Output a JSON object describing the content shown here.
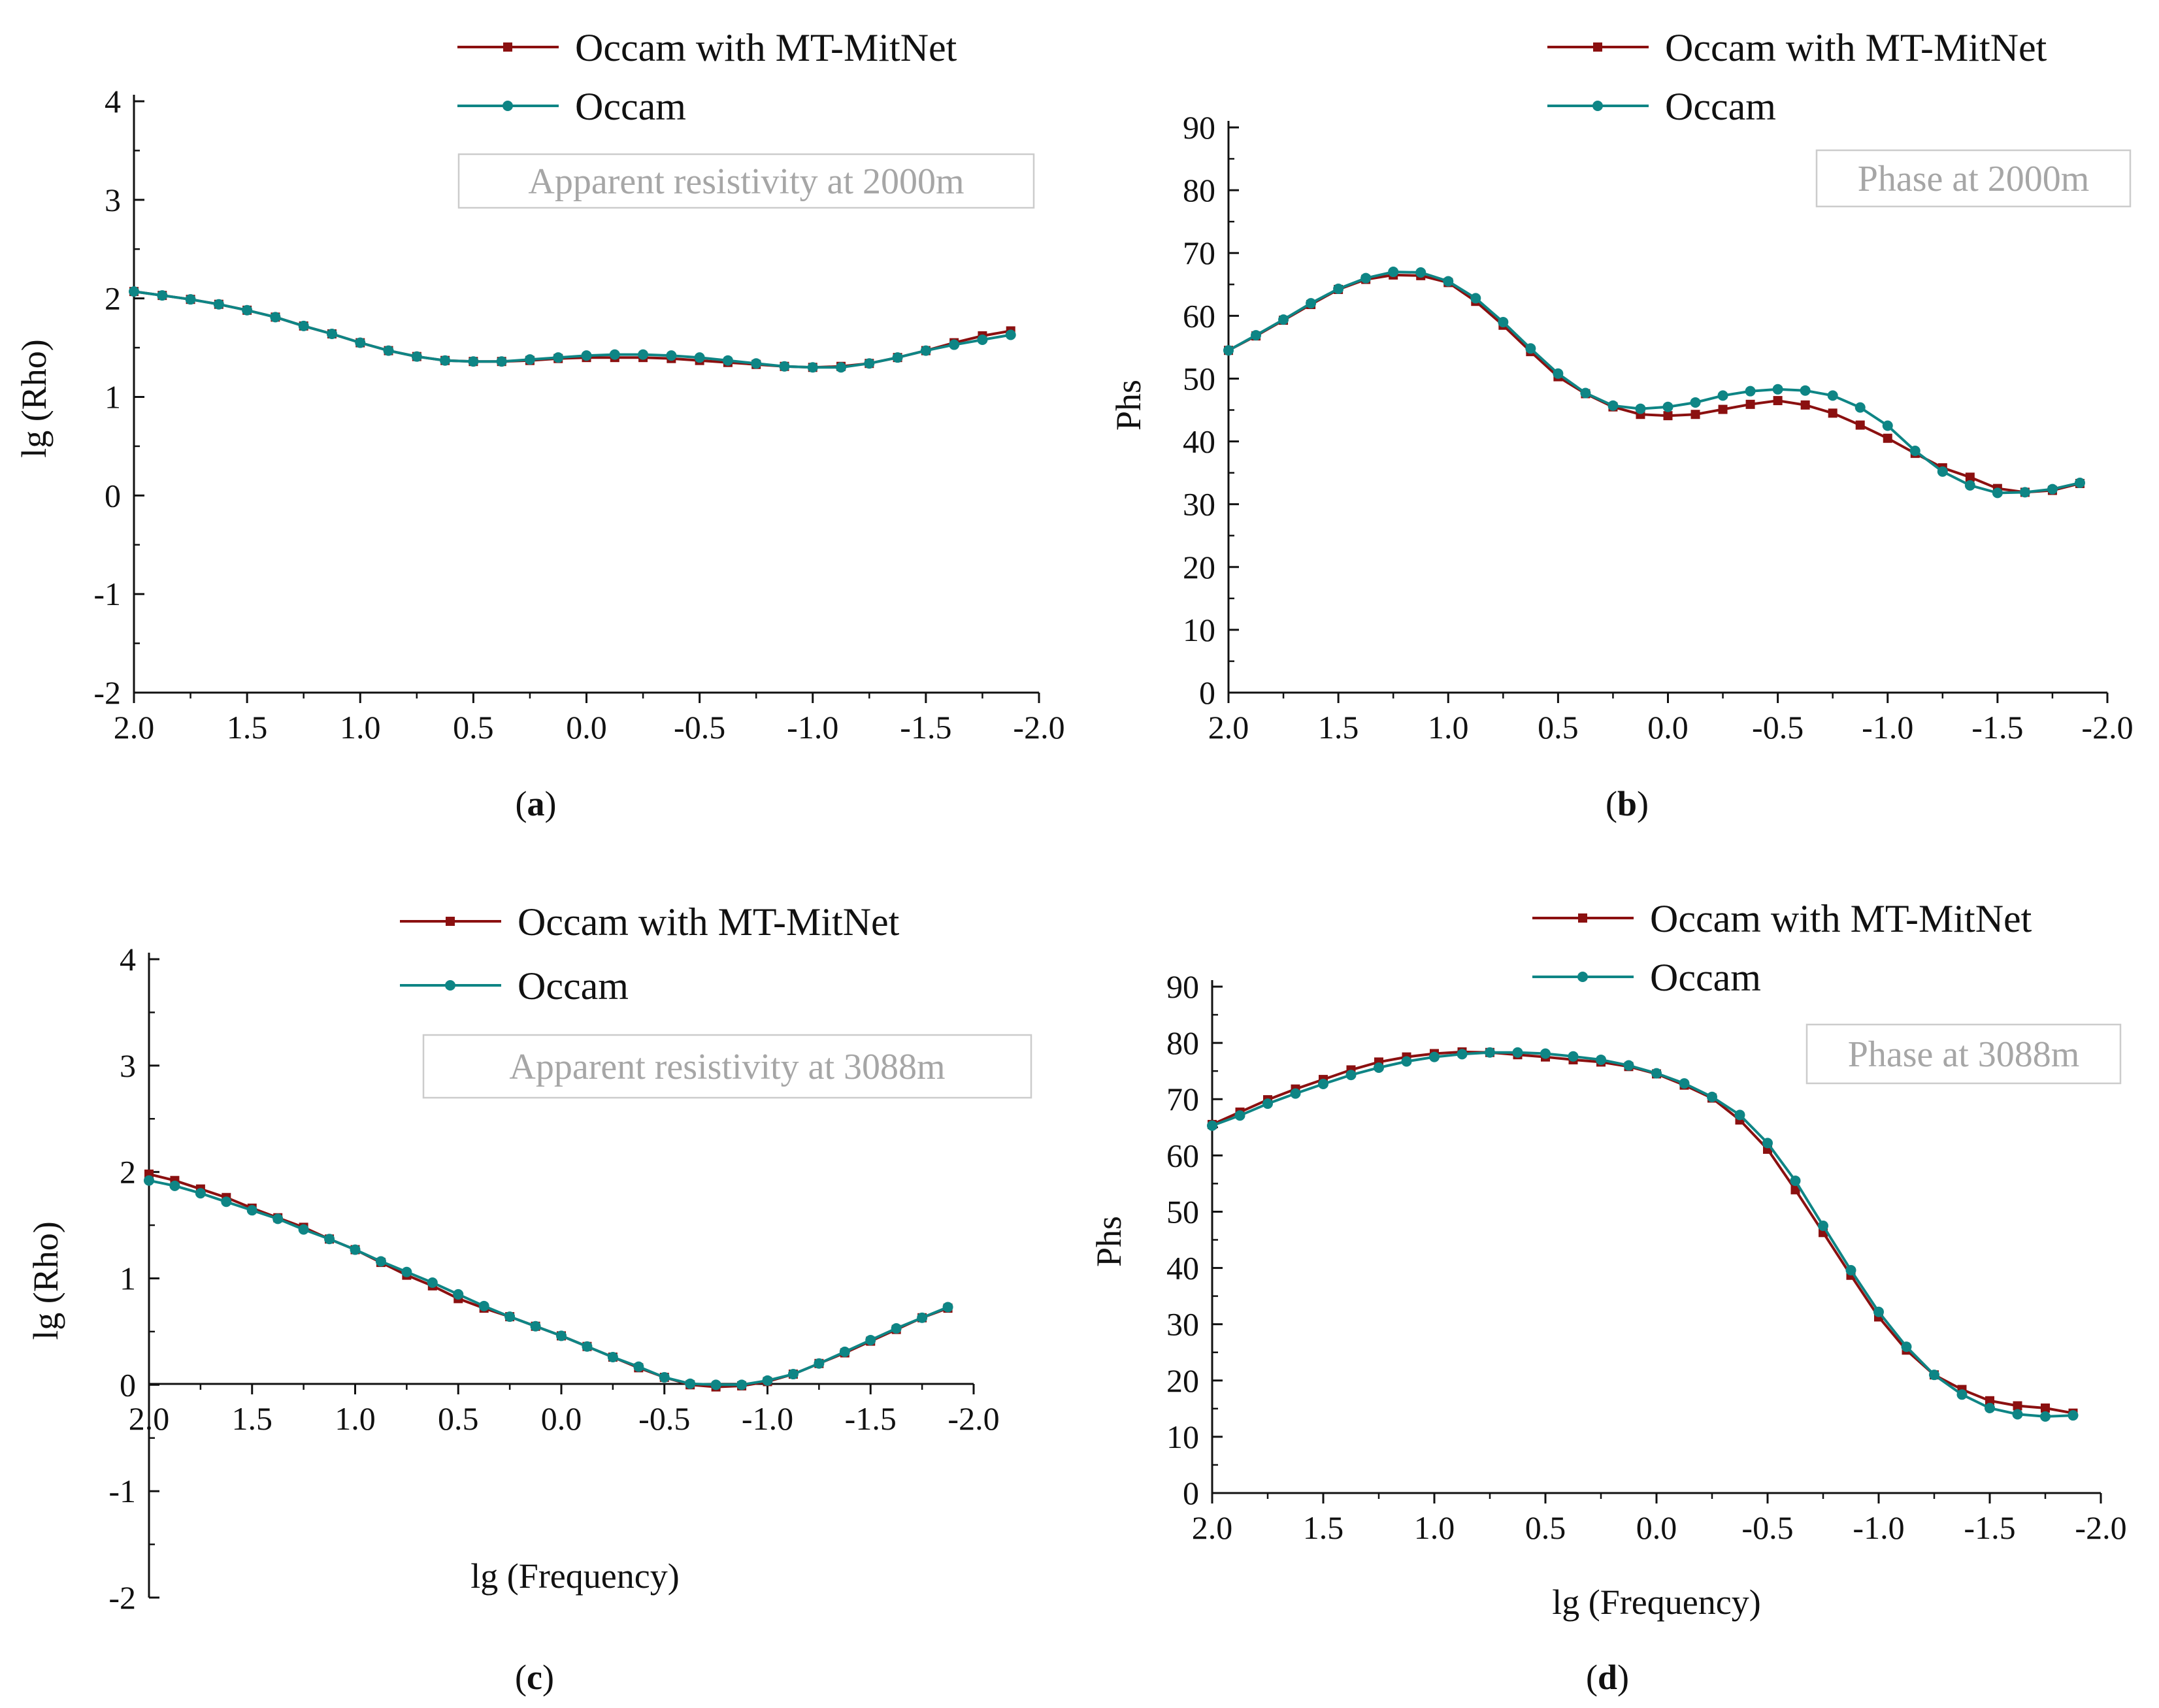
{
  "colors": {
    "mitnet": "#8b1010",
    "occam": "#0e8585",
    "axis": "#111111",
    "annotation": "#a6a6a6",
    "annotation_border": "#cccccc"
  },
  "chart_data": [
    {
      "id": "a",
      "type": "line",
      "panel_label": "a",
      "annotation": "Apparent resistivity at 2000m",
      "xlabel": "",
      "ylabel": "lg (Rho)",
      "xlim": [
        2.0,
        -2.0
      ],
      "ylim": [
        -2,
        4
      ],
      "xticks": [
        2.0,
        1.5,
        1.0,
        0.5,
        0.0,
        -0.5,
        -1.0,
        -1.5,
        -2.0
      ],
      "xtick_labels": [
        "2.0",
        "1.5",
        "1.0",
        "0.5",
        "0.0",
        "-0.5",
        "-1.0",
        "-1.5",
        "-2.0"
      ],
      "yticks": [
        -2,
        -1,
        0,
        1,
        2,
        3,
        4
      ],
      "ytick_labels": [
        "-2",
        "-1",
        "0",
        "1",
        "2",
        "3",
        "4"
      ],
      "legend": [
        "Occam with MT-MitNet",
        "Occam"
      ],
      "legend_position": "top-right",
      "series": [
        {
          "name": "Occam with MT-MitNet",
          "marker": "square",
          "x": [
            2.0,
            1.875,
            1.75,
            1.625,
            1.5,
            1.375,
            1.25,
            1.125,
            1.0,
            0.875,
            0.75,
            0.625,
            0.5,
            0.375,
            0.25,
            0.125,
            0.0,
            -0.125,
            -0.25,
            -0.375,
            -0.5,
            -0.625,
            -0.75,
            -0.875,
            -1.0,
            -1.125,
            -1.25,
            -1.375,
            -1.5,
            -1.625,
            -1.75,
            -1.875
          ],
          "values": [
            2.07,
            2.03,
            1.99,
            1.94,
            1.88,
            1.81,
            1.72,
            1.64,
            1.55,
            1.47,
            1.41,
            1.37,
            1.36,
            1.36,
            1.37,
            1.39,
            1.4,
            1.4,
            1.4,
            1.39,
            1.37,
            1.35,
            1.33,
            1.31,
            1.3,
            1.31,
            1.34,
            1.4,
            1.47,
            1.55,
            1.62,
            1.67
          ]
        },
        {
          "name": "Occam",
          "marker": "circle",
          "x": [
            2.0,
            1.875,
            1.75,
            1.625,
            1.5,
            1.375,
            1.25,
            1.125,
            1.0,
            0.875,
            0.75,
            0.625,
            0.5,
            0.375,
            0.25,
            0.125,
            0.0,
            -0.125,
            -0.25,
            -0.375,
            -0.5,
            -0.625,
            -0.75,
            -0.875,
            -1.0,
            -1.125,
            -1.25,
            -1.375,
            -1.5,
            -1.625,
            -1.75,
            -1.875
          ],
          "values": [
            2.07,
            2.03,
            1.99,
            1.94,
            1.88,
            1.81,
            1.72,
            1.64,
            1.55,
            1.47,
            1.41,
            1.37,
            1.36,
            1.36,
            1.38,
            1.4,
            1.42,
            1.43,
            1.43,
            1.42,
            1.4,
            1.37,
            1.34,
            1.31,
            1.3,
            1.3,
            1.34,
            1.4,
            1.47,
            1.53,
            1.58,
            1.63
          ]
        }
      ]
    },
    {
      "id": "b",
      "type": "line",
      "panel_label": "b",
      "annotation": "Phase at 2000m",
      "xlabel": "",
      "ylabel": "Phs",
      "xlim": [
        2.0,
        -2.0
      ],
      "ylim": [
        0,
        90
      ],
      "xticks": [
        2.0,
        1.5,
        1.0,
        0.5,
        0.0,
        -0.5,
        -1.0,
        -1.5,
        -2.0
      ],
      "xtick_labels": [
        "2.0",
        "1.5",
        "1.0",
        "0.5",
        "0.0",
        "-0.5",
        "-1.0",
        "-1.5",
        "-2.0"
      ],
      "yticks": [
        0,
        10,
        20,
        30,
        40,
        50,
        60,
        70,
        80,
        90
      ],
      "ytick_labels": [
        "0",
        "10",
        "20",
        "30",
        "40",
        "50",
        "60",
        "70",
        "80",
        "90"
      ],
      "legend": [
        "Occam with MT-MitNet",
        "Occam"
      ],
      "legend_position": "top-right",
      "series": [
        {
          "name": "Occam with MT-MitNet",
          "marker": "square",
          "x": [
            2.0,
            1.875,
            1.75,
            1.625,
            1.5,
            1.375,
            1.25,
            1.125,
            1.0,
            0.875,
            0.75,
            0.625,
            0.5,
            0.375,
            0.25,
            0.125,
            0.0,
            -0.125,
            -0.25,
            -0.375,
            -0.5,
            -0.625,
            -0.75,
            -0.875,
            -1.0,
            -1.125,
            -1.25,
            -1.375,
            -1.5,
            -1.625,
            -1.75,
            -1.875
          ],
          "values": [
            54.5,
            56.8,
            59.3,
            61.8,
            64.2,
            65.8,
            66.5,
            66.4,
            65.3,
            62.3,
            58.5,
            54.3,
            50.3,
            47.6,
            45.5,
            44.3,
            44.1,
            44.3,
            45.1,
            45.9,
            46.5,
            45.8,
            44.5,
            42.6,
            40.5,
            38.1,
            35.8,
            34.3,
            32.5,
            31.9,
            32.2,
            33.3
          ]
        },
        {
          "name": "Occam",
          "marker": "circle",
          "x": [
            2.0,
            1.875,
            1.75,
            1.625,
            1.5,
            1.375,
            1.25,
            1.125,
            1.0,
            0.875,
            0.75,
            0.625,
            0.5,
            0.375,
            0.25,
            0.125,
            0.0,
            -0.125,
            -0.25,
            -0.375,
            -0.5,
            -0.625,
            -0.75,
            -0.875,
            -1.0,
            -1.125,
            -1.25,
            -1.375,
            -1.5,
            -1.625,
            -1.75,
            -1.875
          ],
          "values": [
            54.5,
            56.9,
            59.4,
            62.0,
            64.3,
            66.0,
            67.0,
            66.9,
            65.5,
            62.8,
            59.0,
            54.8,
            50.8,
            47.7,
            45.7,
            45.2,
            45.5,
            46.2,
            47.3,
            48.0,
            48.3,
            48.1,
            47.3,
            45.4,
            42.5,
            38.5,
            35.2,
            33.0,
            31.8,
            31.9,
            32.4,
            33.4
          ]
        }
      ]
    },
    {
      "id": "c",
      "type": "line",
      "panel_label": "c",
      "annotation": "Apparent resistivity at 3088m",
      "xlabel": "lg (Frequency)",
      "ylabel": "lg (Rho)",
      "xlim": [
        2.0,
        -2.0
      ],
      "ylim": [
        -2,
        4
      ],
      "xticks": [
        2.0,
        1.5,
        1.0,
        0.5,
        0.0,
        -0.5,
        -1.0,
        -1.5,
        -2.0
      ],
      "xtick_labels": [
        "2.0",
        "1.5",
        "1.0",
        "0.5",
        "0.0",
        "-0.5",
        "-1.0",
        "-1.5",
        "-2.0"
      ],
      "yticks": [
        -2,
        -1,
        0,
        1,
        2,
        3,
        4
      ],
      "ytick_labels": [
        "-2",
        "-1",
        "0",
        "1",
        "2",
        "3",
        "4"
      ],
      "legend": [
        "Occam with MT-MitNet",
        "Occam"
      ],
      "legend_position": "top-right",
      "series": [
        {
          "name": "Occam with MT-MitNet",
          "marker": "square",
          "x": [
            2.0,
            1.875,
            1.75,
            1.625,
            1.5,
            1.375,
            1.25,
            1.125,
            1.0,
            0.875,
            0.75,
            0.625,
            0.5,
            0.375,
            0.25,
            0.125,
            0.0,
            -0.125,
            -0.25,
            -0.375,
            -0.5,
            -0.625,
            -0.75,
            -0.875,
            -1.0,
            -1.125,
            -1.25,
            -1.375,
            -1.5,
            -1.625,
            -1.75,
            -1.875
          ],
          "values": [
            1.98,
            1.92,
            1.84,
            1.76,
            1.66,
            1.57,
            1.48,
            1.37,
            1.27,
            1.15,
            1.03,
            0.93,
            0.81,
            0.72,
            0.64,
            0.55,
            0.46,
            0.36,
            0.26,
            0.16,
            0.07,
            0.0,
            -0.02,
            -0.01,
            0.03,
            0.1,
            0.2,
            0.3,
            0.41,
            0.52,
            0.63,
            0.72
          ]
        },
        {
          "name": "Occam",
          "marker": "circle",
          "x": [
            2.0,
            1.875,
            1.75,
            1.625,
            1.5,
            1.375,
            1.25,
            1.125,
            1.0,
            0.875,
            0.75,
            0.625,
            0.5,
            0.375,
            0.25,
            0.125,
            0.0,
            -0.125,
            -0.25,
            -0.375,
            -0.5,
            -0.625,
            -0.75,
            -0.875,
            -1.0,
            -1.125,
            -1.25,
            -1.375,
            -1.5,
            -1.625,
            -1.75,
            -1.875
          ],
          "values": [
            1.92,
            1.87,
            1.8,
            1.72,
            1.64,
            1.56,
            1.46,
            1.37,
            1.27,
            1.16,
            1.06,
            0.96,
            0.85,
            0.74,
            0.64,
            0.55,
            0.46,
            0.36,
            0.26,
            0.17,
            0.07,
            0.01,
            0.0,
            0.0,
            0.04,
            0.1,
            0.2,
            0.31,
            0.42,
            0.53,
            0.63,
            0.73
          ]
        }
      ]
    },
    {
      "id": "d",
      "type": "line",
      "panel_label": "d",
      "annotation": "Phase at 3088m",
      "xlabel": "lg (Frequency)",
      "ylabel": "Phs",
      "xlim": [
        2.0,
        -2.0
      ],
      "ylim": [
        0,
        90
      ],
      "xticks": [
        2.0,
        1.5,
        1.0,
        0.5,
        0.0,
        -0.5,
        -1.0,
        -1.5,
        -2.0
      ],
      "xtick_labels": [
        "2.0",
        "1.5",
        "1.0",
        "0.5",
        "0.0",
        "-0.5",
        "-1.0",
        "-1.5",
        "-2.0"
      ],
      "yticks": [
        0,
        10,
        20,
        30,
        40,
        50,
        60,
        70,
        80,
        90
      ],
      "ytick_labels": [
        "0",
        "10",
        "20",
        "30",
        "40",
        "50",
        "60",
        "70",
        "80",
        "90"
      ],
      "legend": [
        "Occam with MT-MitNet",
        "Occam"
      ],
      "legend_position": "top-right",
      "series": [
        {
          "name": "Occam with MT-MitNet",
          "marker": "square",
          "x": [
            2.0,
            1.875,
            1.75,
            1.625,
            1.5,
            1.375,
            1.25,
            1.125,
            1.0,
            0.875,
            0.75,
            0.625,
            0.5,
            0.375,
            0.25,
            0.125,
            0.0,
            -0.125,
            -0.25,
            -0.375,
            -0.5,
            -0.625,
            -0.75,
            -0.875,
            -1.0,
            -1.125,
            -1.25,
            -1.375,
            -1.5,
            -1.625,
            -1.75,
            -1.875
          ],
          "values": [
            65.5,
            67.7,
            69.9,
            71.8,
            73.5,
            75.2,
            76.6,
            77.5,
            78.1,
            78.4,
            78.3,
            77.9,
            77.5,
            77.0,
            76.6,
            75.8,
            74.5,
            72.5,
            70.2,
            66.3,
            61.1,
            53.9,
            46.3,
            38.7,
            31.3,
            25.4,
            21.0,
            18.4,
            16.4,
            15.5,
            15.1,
            14.2
          ]
        },
        {
          "name": "Occam",
          "marker": "circle",
          "x": [
            2.0,
            1.875,
            1.75,
            1.625,
            1.5,
            1.375,
            1.25,
            1.125,
            1.0,
            0.875,
            0.75,
            0.625,
            0.5,
            0.375,
            0.25,
            0.125,
            0.0,
            -0.125,
            -0.25,
            -0.375,
            -0.5,
            -0.625,
            -0.75,
            -0.875,
            -1.0,
            -1.125,
            -1.25,
            -1.375,
            -1.5,
            -1.625,
            -1.75,
            -1.875
          ],
          "values": [
            65.3,
            67.1,
            69.2,
            71.0,
            72.7,
            74.3,
            75.6,
            76.7,
            77.5,
            78.0,
            78.3,
            78.3,
            78.1,
            77.6,
            77.0,
            76.0,
            74.6,
            72.8,
            70.4,
            67.2,
            62.2,
            55.5,
            47.5,
            39.6,
            32.2,
            26.0,
            21.0,
            17.5,
            15.1,
            14.0,
            13.6,
            13.8
          ]
        }
      ]
    }
  ]
}
